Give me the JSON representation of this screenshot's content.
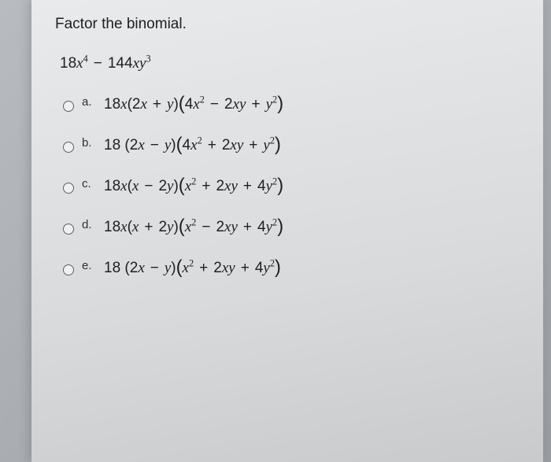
{
  "prompt": "Factor the binomial.",
  "options": [
    {
      "id": "a",
      "letter": "a."
    },
    {
      "id": "b",
      "letter": "b."
    },
    {
      "id": "c",
      "letter": "c."
    },
    {
      "id": "d",
      "letter": "d."
    },
    {
      "id": "e",
      "letter": "e."
    }
  ],
  "colors": {
    "text": "#202020",
    "paper_top": "#e8eaec",
    "paper_bottom": "#c8cacc",
    "bg": "#a8acb0",
    "radio_border": "#606060"
  },
  "typography": {
    "prompt_fontsize": 19,
    "math_fontsize": 19,
    "label_fontsize": 15
  },
  "main_expression": {
    "terms": [
      {
        "coef": "18",
        "var": "x",
        "exp": "4"
      },
      {
        "op": "−"
      },
      {
        "coef": "144",
        "var": "xy",
        "exp": "3"
      }
    ]
  },
  "option_expressions": {
    "a": "18x(2x + y)(4x^2 − 2xy + y^2)",
    "b": "18 (2x − y)(4x^2 + 2xy + y^2)",
    "c": "18x(x − 2y)(x^2 + 2xy + 4y^2)",
    "d": "18x(x + 2y)(x^2 − 2xy + 4y^2)",
    "e": "18 (2x − y)(x^2 + 2xy + 4y^2)"
  }
}
